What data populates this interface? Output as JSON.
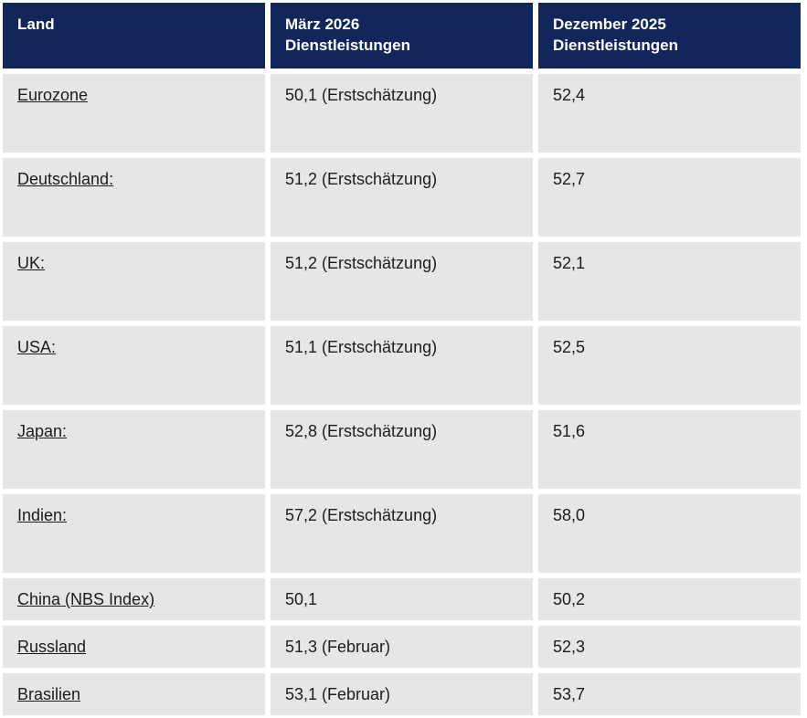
{
  "header": {
    "col1_line1": "Land",
    "col2_line1": "März 2026",
    "col2_line2": "Dienstleistungen",
    "col3_line1": "Dezember 2025",
    "col3_line2": "Dienstleistungen"
  },
  "chart_data": {
    "type": "table",
    "title": "",
    "columns": [
      "Land",
      "März 2026 Dienstleistungen",
      "Dezember 2025 Dienstleistungen"
    ],
    "rows": [
      {
        "land": "Eurozone",
        "maerz": "50,1 (Erstschätzung)",
        "dezember": "52,4"
      },
      {
        "land": "Deutschland:",
        "maerz": "51,2 (Erstschätzung)",
        "dezember": "52,7"
      },
      {
        "land": "UK:",
        "maerz": "51,2 (Erstschätzung)",
        "dezember": "52,1"
      },
      {
        "land": "USA:",
        "maerz": "51,1 (Erstschätzung)",
        "dezember": "52,5"
      },
      {
        "land": "Japan:",
        "maerz": "52,8 (Erstschätzung)",
        "dezember": "51,6"
      },
      {
        "land": "Indien:",
        "maerz": "57,2 (Erstschätzung)",
        "dezember": "58,0"
      },
      {
        "land": "China (NBS Index)",
        "maerz": "50,1",
        "dezember": "50,2"
      },
      {
        "land": "Russland",
        "maerz": "51,3 (Februar)",
        "dezember": "52,3"
      },
      {
        "land": "Brasilien",
        "maerz": "53,1 (Februar)",
        "dezember": "53,7"
      }
    ],
    "numeric_values": {
      "maerz_2026": [
        50.1,
        51.2,
        51.2,
        51.1,
        52.8,
        57.2,
        50.1,
        51.3,
        53.1
      ],
      "dezember_2025": [
        52.4,
        52.7,
        52.1,
        52.5,
        51.6,
        58.0,
        50.2,
        52.3,
        53.7
      ]
    }
  },
  "colors": {
    "header_bg": "#12265B",
    "header_text": "#FFFFFF",
    "cell_bg": "#E6E6E6",
    "body_text": "#1C1C1C",
    "gridline": "#FFFFFF"
  }
}
